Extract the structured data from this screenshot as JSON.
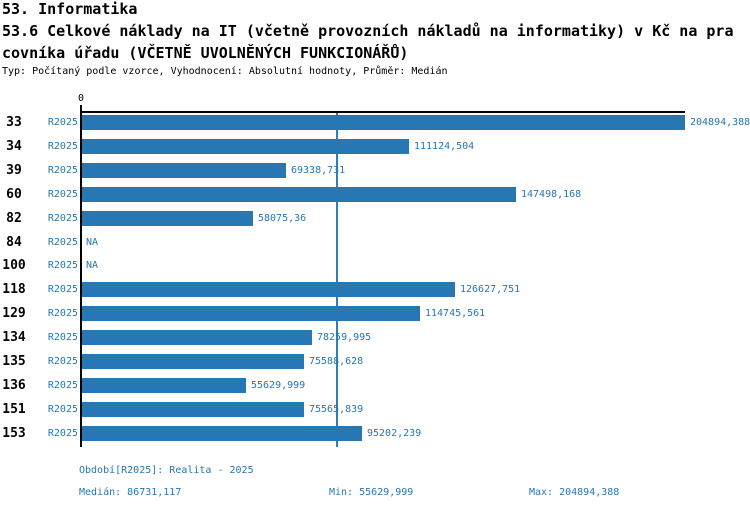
{
  "header": {
    "title_line1": "53. Informatika",
    "title_line2": "53.6 Celkové náklady na IT (včetně provozních nákladů na informatiky) v Kč na pra",
    "title_line3": "covníka úřadu (VČETNĚ UVOLNĚNÝCH FUNKCIONÁŘŮ)",
    "meta": "Typ: Počítaný podle vzorce, Vyhodnocení: Absolutní hodnoty, Průměr: Medián"
  },
  "chart_data": {
    "type": "bar",
    "orientation": "horizontal",
    "series_label": "R2025",
    "categories": [
      "33",
      "34",
      "39",
      "60",
      "82",
      "84",
      "100",
      "118",
      "129",
      "134",
      "135",
      "136",
      "151",
      "153"
    ],
    "values": [
      204894.388,
      111124.504,
      69338.731,
      147498.168,
      58075.36,
      null,
      null,
      126627.751,
      114745.561,
      78259.995,
      75588.628,
      55629.999,
      75565.839,
      95202.239
    ],
    "value_labels": [
      "204894,388",
      "111124,504",
      "69338,731",
      "147498,168",
      "58075,36",
      "NA",
      "NA",
      "126627,751",
      "114745,561",
      "78259,995",
      "75588,628",
      "55629,999",
      "75565,839",
      "95202,239"
    ],
    "x_axis": {
      "zero_label": "0",
      "min": 0,
      "max": 204894.388
    },
    "median_value": 86731.117,
    "grid": "single median reference line",
    "legend_position": "none",
    "colors": {
      "bar": "#2677b4",
      "blue_text": "#2677b4",
      "median_line": "#2e80ba",
      "axis": "#000000"
    }
  },
  "footer": {
    "period": "Období[R2025]: Realita - 2025",
    "median": "Medián: 86731,117",
    "min": "Min: 55629,999",
    "max": "Max: 204894,388"
  }
}
